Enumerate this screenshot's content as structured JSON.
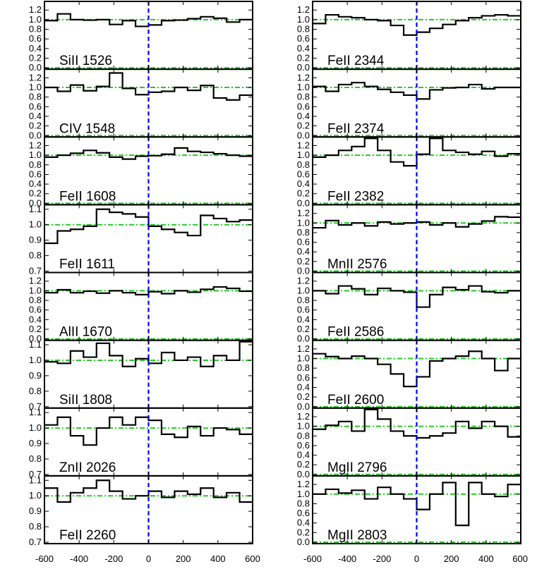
{
  "chart_data": {
    "type": "line",
    "style": "step",
    "xlim": [
      -600,
      600
    ],
    "x_ticks": [
      -600,
      -400,
      -200,
      0,
      200,
      400,
      600
    ],
    "x_tick_labels": [
      "-600",
      "-400",
      "-200",
      "0",
      "200",
      "400",
      "600"
    ],
    "zero_line": {
      "x": 0,
      "color": "#0000ee",
      "style": "dashed"
    },
    "reference_lines": {
      "y": [
        0.0,
        1.0
      ],
      "color": "#22cc22",
      "style": "dash-dot"
    },
    "x_bins": [
      -600,
      -525,
      -450,
      -375,
      -300,
      -225,
      -150,
      -75,
      0,
      75,
      150,
      225,
      300,
      375,
      450,
      525,
      600
    ],
    "columns": [
      {
        "panels": [
          {
            "label": "SiII 1526",
            "ylim": [
              0,
              1.35
            ],
            "yticks": [
              0.0,
              0.2,
              0.4,
              0.6,
              0.8,
              1.0,
              1.2
            ],
            "ytick_labels": [
              "0.0",
              "0.2",
              "0.4",
              "0.6",
              "0.8",
              "1.0",
              "1.2"
            ],
            "values": [
              0.98,
              1.12,
              1.0,
              0.99,
              1.0,
              0.9,
              0.98,
              0.86,
              0.89,
              0.98,
              0.99,
              1.02,
              1.06,
              1.03,
              0.95,
              1.0
            ]
          },
          {
            "label": "CIV 1548",
            "ylim": [
              0,
              1.35
            ],
            "yticks": [
              0.0,
              0.2,
              0.4,
              0.6,
              0.8,
              1.0,
              1.2
            ],
            "ytick_labels": [
              "0.0",
              "0.2",
              "0.4",
              "0.6",
              "0.8",
              "1.0",
              "1.2"
            ],
            "values": [
              1.0,
              0.92,
              1.05,
              0.93,
              1.02,
              1.3,
              0.98,
              0.85,
              0.9,
              0.92,
              1.0,
              0.94,
              1.04,
              0.78,
              0.74,
              0.84
            ]
          },
          {
            "label": "FeII 1608",
            "ylim": [
              0,
              1.35
            ],
            "yticks": [
              0.0,
              0.2,
              0.4,
              0.6,
              0.8,
              1.0,
              1.2
            ],
            "ytick_labels": [
              "0.0",
              "0.2",
              "0.4",
              "0.6",
              "0.8",
              "1.0",
              "1.2"
            ],
            "values": [
              0.96,
              1.0,
              1.04,
              1.1,
              1.05,
              0.96,
              0.92,
              0.98,
              0.99,
              1.02,
              1.15,
              1.08,
              1.06,
              1.03,
              1.0,
              0.98
            ]
          },
          {
            "label": "FeII 1611",
            "ylim": [
              0.7,
              1.12
            ],
            "yticks": [
              0.7,
              0.8,
              0.9,
              1.0,
              1.1
            ],
            "ytick_labels": [
              "0.7",
              "0.8",
              "0.9",
              "1.0",
              "1.1"
            ],
            "values": [
              0.88,
              0.96,
              0.97,
              0.99,
              1.1,
              1.08,
              1.07,
              1.05,
              0.99,
              0.97,
              0.95,
              0.93,
              1.06,
              1.04,
              1.02,
              1.03
            ]
          },
          {
            "label": "AlII 1670",
            "ylim": [
              0,
              1.35
            ],
            "yticks": [
              0.0,
              0.2,
              0.4,
              0.6,
              0.8,
              1.0,
              1.2
            ],
            "ytick_labels": [
              "0.0",
              "0.2",
              "0.4",
              "0.6",
              "0.8",
              "1.0",
              "1.2"
            ],
            "values": [
              0.96,
              1.02,
              0.96,
              0.99,
              0.95,
              1.0,
              0.96,
              0.92,
              0.98,
              0.94,
              1.0,
              0.97,
              1.03,
              1.08,
              1.05,
              0.99
            ]
          },
          {
            "label": "SiII 1808",
            "ylim": [
              0.7,
              1.12
            ],
            "yticks": [
              0.7,
              0.8,
              0.9,
              1.0,
              1.1
            ],
            "ytick_labels": [
              "0.7",
              "0.8",
              "0.9",
              "1.0",
              "1.1"
            ],
            "values": [
              0.99,
              0.98,
              1.06,
              1.02,
              1.11,
              1.03,
              0.96,
              1.01,
              0.98,
              1.05,
              1.0,
              1.02,
              0.96,
              1.03,
              1.0,
              1.12
            ]
          },
          {
            "label": "ZnII 2026",
            "ylim": [
              0.7,
              1.12
            ],
            "yticks": [
              0.7,
              0.8,
              0.9,
              1.0,
              1.1
            ],
            "ytick_labels": [
              "0.7",
              "0.8",
              "0.9",
              "1.0",
              "1.1"
            ],
            "values": [
              1.02,
              1.07,
              0.95,
              0.89,
              1.0,
              1.07,
              1.02,
              1.07,
              1.05,
              0.96,
              0.94,
              1.01,
              0.95,
              1.0,
              0.99,
              0.96
            ]
          },
          {
            "label": "FeII 2260",
            "ylim": [
              0.7,
              1.12
            ],
            "yticks": [
              0.7,
              0.8,
              0.9,
              1.0,
              1.1
            ],
            "ytick_labels": [
              "0.7",
              "0.8",
              "0.9",
              "1.0",
              "1.1"
            ],
            "values": [
              1.05,
              0.96,
              1.02,
              1.05,
              1.1,
              1.03,
              0.98,
              1.0,
              1.03,
              0.99,
              1.03,
              1.01,
              1.05,
              0.99,
              1.02,
              0.96
            ]
          }
        ]
      },
      {
        "panels": [
          {
            "label": "FeII 2344",
            "ylim": [
              0,
              1.35
            ],
            "yticks": [
              0.0,
              0.2,
              0.4,
              0.6,
              0.8,
              1.0,
              1.2
            ],
            "ytick_labels": [
              "0.0",
              "0.2",
              "0.4",
              "0.6",
              "0.8",
              "1.0",
              "1.2"
            ],
            "values": [
              0.92,
              1.1,
              1.06,
              1.04,
              1.0,
              0.98,
              0.88,
              0.68,
              0.74,
              0.82,
              0.9,
              0.98,
              1.04,
              1.08,
              1.1,
              1.08
            ]
          },
          {
            "label": "FeII 2374",
            "ylim": [
              0,
              1.35
            ],
            "yticks": [
              0.0,
              0.2,
              0.4,
              0.6,
              0.8,
              1.0,
              1.2
            ],
            "ytick_labels": [
              "0.0",
              "0.2",
              "0.4",
              "0.6",
              "0.8",
              "1.0",
              "1.2"
            ],
            "values": [
              1.02,
              0.92,
              1.06,
              1.1,
              1.02,
              0.96,
              0.9,
              0.84,
              0.76,
              0.95,
              0.99,
              1.0,
              1.06,
              0.97,
              1.0,
              1.0
            ]
          },
          {
            "label": "FeII 2382",
            "ylim": [
              0,
              1.35
            ],
            "yticks": [
              0.0,
              0.2,
              0.4,
              0.6,
              0.8,
              1.0,
              1.2
            ],
            "ytick_labels": [
              "0.0",
              "0.2",
              "0.4",
              "0.6",
              "0.8",
              "1.0",
              "1.2"
            ],
            "values": [
              0.96,
              1.0,
              1.1,
              1.18,
              1.35,
              1.1,
              0.86,
              0.78,
              1.02,
              1.35,
              1.1,
              1.06,
              1.02,
              1.08,
              0.98,
              1.03
            ]
          },
          {
            "label": "MnII 2576",
            "ylim": [
              0,
              1.35
            ],
            "yticks": [
              0.0,
              0.2,
              0.4,
              0.6,
              0.8,
              1.0,
              1.2
            ],
            "ytick_labels": [
              "0.0",
              "0.2",
              "0.4",
              "0.6",
              "0.8",
              "1.0",
              "1.2"
            ],
            "values": [
              0.9,
              1.05,
              0.96,
              1.0,
              0.94,
              1.02,
              0.98,
              1.0,
              1.02,
              0.96,
              1.0,
              0.92,
              0.98,
              1.04,
              1.13,
              1.12
            ]
          },
          {
            "label": "FeII 2586",
            "ylim": [
              0,
              1.35
            ],
            "yticks": [
              0.0,
              0.2,
              0.4,
              0.6,
              0.8,
              1.0,
              1.2
            ],
            "ytick_labels": [
              "0.0",
              "0.2",
              "0.4",
              "0.6",
              "0.8",
              "1.0",
              "1.2"
            ],
            "values": [
              1.0,
              0.94,
              1.1,
              1.04,
              0.92,
              1.05,
              1.0,
              0.97,
              0.66,
              0.92,
              1.07,
              1.02,
              1.1,
              0.98,
              0.96,
              1.0
            ]
          },
          {
            "label": "FeII 2600",
            "ylim": [
              0,
              1.35
            ],
            "yticks": [
              0.0,
              0.2,
              0.4,
              0.6,
              0.8,
              1.0,
              1.2
            ],
            "ytick_labels": [
              "0.0",
              "0.2",
              "0.4",
              "0.6",
              "0.8",
              "1.0",
              "1.2"
            ],
            "values": [
              1.1,
              1.04,
              1.0,
              1.05,
              1.0,
              0.88,
              0.68,
              0.42,
              0.62,
              0.95,
              1.0,
              1.05,
              1.15,
              1.0,
              0.75,
              1.0
            ]
          },
          {
            "label": "MgII 2796",
            "ylim": [
              0,
              1.35
            ],
            "yticks": [
              0.0,
              0.2,
              0.4,
              0.6,
              0.8,
              1.0,
              1.2
            ],
            "ytick_labels": [
              "0.0",
              "0.2",
              "0.4",
              "0.6",
              "0.8",
              "1.0",
              "1.2"
            ],
            "values": [
              0.94,
              1.02,
              1.1,
              0.9,
              1.38,
              1.15,
              0.9,
              0.8,
              0.76,
              0.8,
              0.86,
              1.1,
              0.96,
              1.1,
              1.0,
              0.78
            ]
          },
          {
            "label": "MgII 2803",
            "ylim": [
              0,
              1.35
            ],
            "yticks": [
              0.0,
              0.2,
              0.4,
              0.6,
              0.8,
              1.0,
              1.2
            ],
            "ytick_labels": [
              "0.0",
              "0.2",
              "0.4",
              "0.6",
              "0.8",
              "1.0",
              "1.2"
            ],
            "values": [
              1.0,
              1.1,
              1.02,
              1.08,
              0.9,
              1.14,
              1.0,
              0.9,
              0.68,
              1.0,
              1.24,
              0.35,
              1.24,
              1.0,
              0.95,
              1.2
            ]
          }
        ]
      }
    ]
  }
}
